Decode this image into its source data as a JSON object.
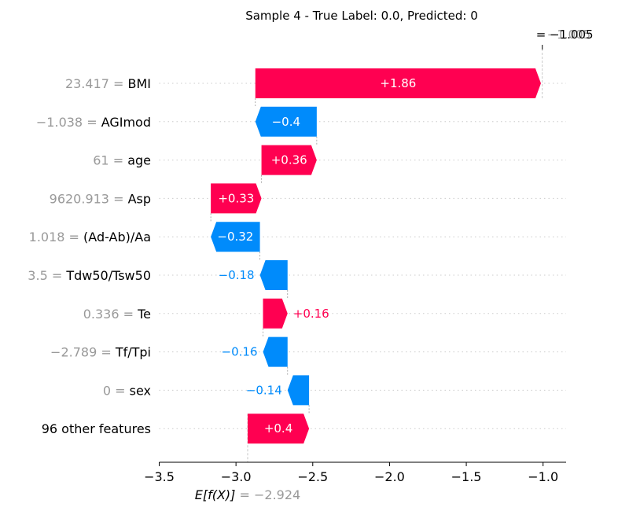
{
  "chart_data": {
    "type": "waterfall",
    "title": "Sample 4 - True Label: 0.0, Predicted: 0",
    "base_value": -2.924,
    "base_value_label": "E[f(X)]",
    "base_value_text": "= −2.924",
    "output_value": -1.005,
    "output_label": "f(x)",
    "output_value_text": "= −1.005",
    "overlap_text": "−1.005",
    "xlim": [
      -3.5,
      -0.85
    ],
    "xticks": [
      -3.5,
      -3.0,
      -2.5,
      -2.0,
      -1.5,
      -1.0
    ],
    "xtick_labels": [
      "−3.5",
      "−3.0",
      "−2.5",
      "−2.0",
      "−1.5",
      "−1.0"
    ],
    "features": [
      {
        "value": "23.417",
        "name": "BMI",
        "shap": 1.86,
        "label": "+1.86"
      },
      {
        "value": "−1.038",
        "name": "AGImod",
        "shap": -0.4,
        "label": "−0.4"
      },
      {
        "value": "61",
        "name": "age",
        "shap": 0.36,
        "label": "+0.36"
      },
      {
        "value": "9620.913",
        "name": "Asp",
        "shap": 0.33,
        "label": "+0.33"
      },
      {
        "value": "1.018",
        "name": "(Ad-Ab)/Aa",
        "shap": -0.32,
        "label": "−0.32"
      },
      {
        "value": "3.5",
        "name": "Tdw50/Tsw50",
        "shap": -0.18,
        "label": "−0.18"
      },
      {
        "value": "0.336",
        "name": "Te",
        "shap": 0.16,
        "label": "+0.16"
      },
      {
        "value": "−2.789",
        "name": "Tf/Tpi",
        "shap": -0.16,
        "label": "−0.16"
      },
      {
        "value": "0",
        "name": "sex",
        "shap": -0.14,
        "label": "−0.14"
      },
      {
        "value": "",
        "name": "96 other features",
        "shap": 0.4,
        "label": "+0.4"
      }
    ],
    "colors": {
      "positive": "#ff0051",
      "negative": "#008bfb",
      "value_text": "#999999"
    },
    "grid": true
  }
}
